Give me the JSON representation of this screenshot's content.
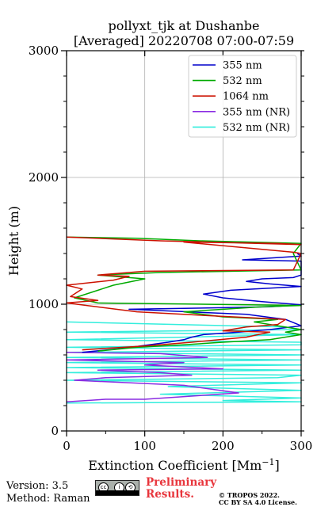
{
  "chart_data": {
    "type": "line",
    "title": "pollyxt_tjk at Dushanbe",
    "subtitle": "[Averaged] 20220708 07:00-07:59",
    "xlabel": "Extinction Coefficient [Mm",
    "xlabel_superscript": "−1",
    "xlabel_close": "]",
    "ylabel": "Height (m)",
    "xlim": [
      0,
      300
    ],
    "ylim": [
      0,
      3000
    ],
    "x_ticks": [
      "0",
      "100",
      "200",
      "300"
    ],
    "y_ticks": [
      "0",
      "1000",
      "2000",
      "3000"
    ],
    "grid": true,
    "legend_position": "top-right",
    "series": [
      {
        "name": "355 nm",
        "color": "#0000cc",
        "points": [
          [
            20,
            620
          ],
          [
            70,
            650
          ],
          [
            130,
            700
          ],
          [
            150,
            720
          ],
          [
            160,
            740
          ],
          [
            175,
            760
          ],
          [
            220,
            780
          ],
          [
            260,
            800
          ],
          [
            300,
            830
          ],
          [
            280,
            880
          ],
          [
            230,
            920
          ],
          [
            80,
            960
          ],
          [
            180,
            970
          ],
          [
            260,
            980
          ],
          [
            300,
            995
          ],
          [
            250,
            1020
          ],
          [
            200,
            1050
          ],
          [
            175,
            1080
          ],
          [
            210,
            1110
          ],
          [
            300,
            1140
          ],
          [
            260,
            1160
          ],
          [
            230,
            1180
          ],
          [
            250,
            1200
          ],
          [
            290,
            1210
          ],
          [
            300,
            1230
          ],
          [
            300,
            1340
          ],
          [
            225,
            1350
          ],
          [
            300,
            1380
          ],
          [
            295,
            1400
          ]
        ]
      },
      {
        "name": "532 nm",
        "color": "#00aa00",
        "points": [
          [
            40,
            630
          ],
          [
            90,
            660
          ],
          [
            150,
            680
          ],
          [
            200,
            700
          ],
          [
            260,
            720
          ],
          [
            300,
            760
          ],
          [
            280,
            780
          ],
          [
            300,
            800
          ],
          [
            270,
            830
          ],
          [
            240,
            860
          ],
          [
            270,
            880
          ],
          [
            200,
            900
          ],
          [
            150,
            940
          ],
          [
            250,
            980
          ],
          [
            300,
            990
          ],
          [
            40,
            1010
          ],
          [
            10,
            1050
          ],
          [
            60,
            1150
          ],
          [
            100,
            1200
          ],
          [
            40,
            1230
          ],
          [
            120,
            1250
          ],
          [
            300,
            1270
          ],
          [
            290,
            1400
          ],
          [
            300,
            1480
          ],
          [
            170,
            1500
          ],
          [
            90,
            1520
          ],
          [
            0,
            1530
          ]
        ]
      },
      {
        "name": "1064 nm",
        "color": "#cc1100",
        "points": [
          [
            20,
            640
          ],
          [
            100,
            670
          ],
          [
            160,
            700
          ],
          [
            230,
            740
          ],
          [
            260,
            780
          ],
          [
            200,
            790
          ],
          [
            230,
            820
          ],
          [
            270,
            840
          ],
          [
            280,
            880
          ],
          [
            180,
            910
          ],
          [
            90,
            940
          ],
          [
            0,
            1010
          ],
          [
            40,
            1030
          ],
          [
            5,
            1060
          ],
          [
            20,
            1120
          ],
          [
            0,
            1150
          ],
          [
            60,
            1190
          ],
          [
            80,
            1220
          ],
          [
            40,
            1230
          ],
          [
            100,
            1260
          ],
          [
            290,
            1270
          ],
          [
            300,
            1400
          ],
          [
            290,
            1410
          ],
          [
            150,
            1490
          ],
          [
            270,
            1480
          ],
          [
            300,
            1470
          ],
          [
            120,
            1500
          ],
          [
            0,
            1530
          ]
        ]
      },
      {
        "name": "355 nm (NR)",
        "color": "#8a2be2",
        "points": [
          [
            0,
            230
          ],
          [
            50,
            250
          ],
          [
            100,
            250
          ],
          [
            220,
            300
          ],
          [
            150,
            360
          ],
          [
            10,
            400
          ],
          [
            50,
            420
          ],
          [
            160,
            440
          ],
          [
            120,
            460
          ],
          [
            40,
            480
          ],
          [
            200,
            490
          ],
          [
            100,
            520
          ],
          [
            150,
            540
          ],
          [
            0,
            560
          ],
          [
            180,
            580
          ],
          [
            120,
            610
          ],
          [
            0,
            620
          ]
        ]
      },
      {
        "name": "532 nm (NR)",
        "color": "#33eedd",
        "points": [
          [
            0,
            220
          ],
          [
            300,
            230
          ],
          [
            200,
            240
          ],
          [
            300,
            260
          ],
          [
            120,
            290
          ],
          [
            300,
            320
          ],
          [
            130,
            350
          ],
          [
            300,
            380
          ],
          [
            0,
            400
          ],
          [
            270,
            420
          ],
          [
            300,
            440
          ],
          [
            0,
            460
          ],
          [
            300,
            480
          ],
          [
            0,
            500
          ],
          [
            300,
            520
          ],
          [
            0,
            540
          ],
          [
            300,
            560
          ],
          [
            0,
            580
          ],
          [
            300,
            600
          ],
          [
            0,
            620
          ],
          [
            300,
            640
          ],
          [
            0,
            660
          ],
          [
            300,
            680
          ],
          [
            300,
            700
          ],
          [
            0,
            720
          ],
          [
            300,
            760
          ],
          [
            0,
            780
          ],
          [
            300,
            800
          ],
          [
            280,
            820
          ],
          [
            0,
            860
          ]
        ]
      }
    ]
  },
  "footer": {
    "version": "Version: 3.5",
    "method": "Method: Raman",
    "prelim_line1": "Preliminary",
    "prelim_line2": "Results.",
    "copyright_line1": "© TROPOS 2022.",
    "copyright_line2": "CC BY SA 4.0 License.",
    "license_badge": "CC BY SA"
  }
}
